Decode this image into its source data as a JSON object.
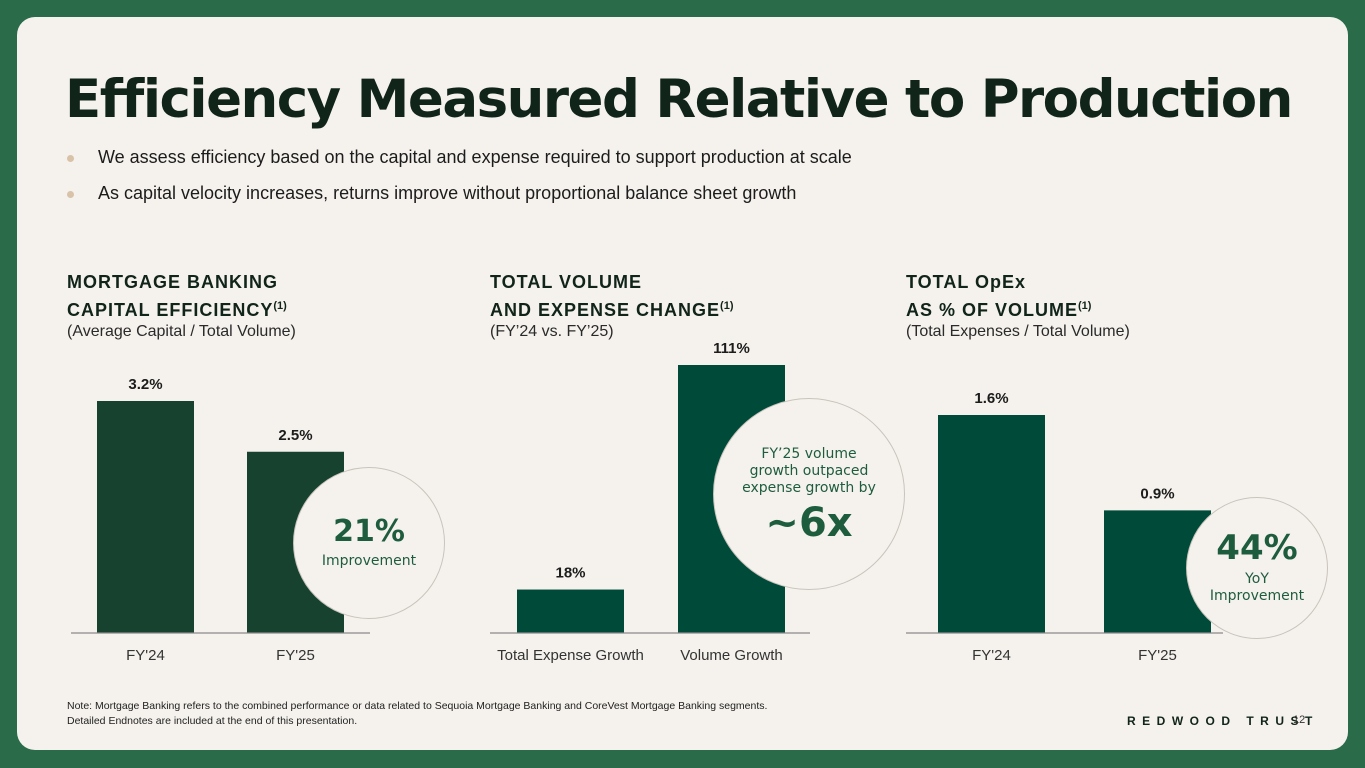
{
  "title": "Efficiency Measured Relative to Production",
  "bullets": [
    "We assess efficiency based on the capital and expense required to support production at scale",
    "As capital velocity increases, returns improve without proportional balance sheet growth"
  ],
  "panels": [
    {
      "heading_line1": "MORTGAGE BANKING",
      "heading_line2": "CAPITAL EFFICIENCY",
      "footnote": "(1)",
      "subtitle": "(Average Capital / Total Volume)"
    },
    {
      "heading_line1": "TOTAL VOLUME",
      "heading_line2": "AND EXPENSE CHANGE",
      "footnote": "(1)",
      "subtitle": "(FY’24 vs. FY’25)"
    },
    {
      "heading_line1": "TOTAL OpEx",
      "heading_line2": "AS % OF VOLUME",
      "footnote": "(1)",
      "subtitle": "(Total Expenses / Total Volume)"
    }
  ],
  "chart_data": [
    {
      "type": "bar",
      "title": "MORTGAGE BANKING CAPITAL EFFICIENCY",
      "categories": [
        "FY'24",
        "FY'25"
      ],
      "values": [
        3.2,
        2.5
      ],
      "value_labels": [
        "3.2%",
        "2.5%"
      ],
      "ylim": [
        0,
        3.2
      ],
      "color": "#16422f"
    },
    {
      "type": "bar",
      "title": "TOTAL VOLUME AND EXPENSE CHANGE",
      "categories": [
        "Total Expense Growth",
        "Volume Growth"
      ],
      "values": [
        18,
        111
      ],
      "value_labels": [
        "18%",
        "111%"
      ],
      "ylim": [
        0,
        111
      ],
      "color": "#004a3a"
    },
    {
      "type": "bar",
      "title": "TOTAL OpEx AS % OF VOLUME",
      "categories": [
        "FY'24",
        "FY'25"
      ],
      "values": [
        1.6,
        0.9
      ],
      "value_labels": [
        "1.6%",
        "0.9%"
      ],
      "ylim": [
        0,
        1.6
      ],
      "color": "#004a3a"
    }
  ],
  "callouts": [
    {
      "big": "21%",
      "small": "Improvement"
    },
    {
      "small": "FY’25 volume\ngrowth outpaced\nexpense growth by",
      "big": "~6x"
    },
    {
      "big": "44%",
      "small": "YoY\nImprovement"
    }
  ],
  "note_line1": "Note: Mortgage Banking refers to the combined performance or data related to Sequoia Mortgage Banking and CoreVest Mortgage Banking segments.",
  "note_line2": "Detailed Endnotes are included at the end of this presentation.",
  "brand": "REDWOOD TRUST",
  "page_number": "12"
}
